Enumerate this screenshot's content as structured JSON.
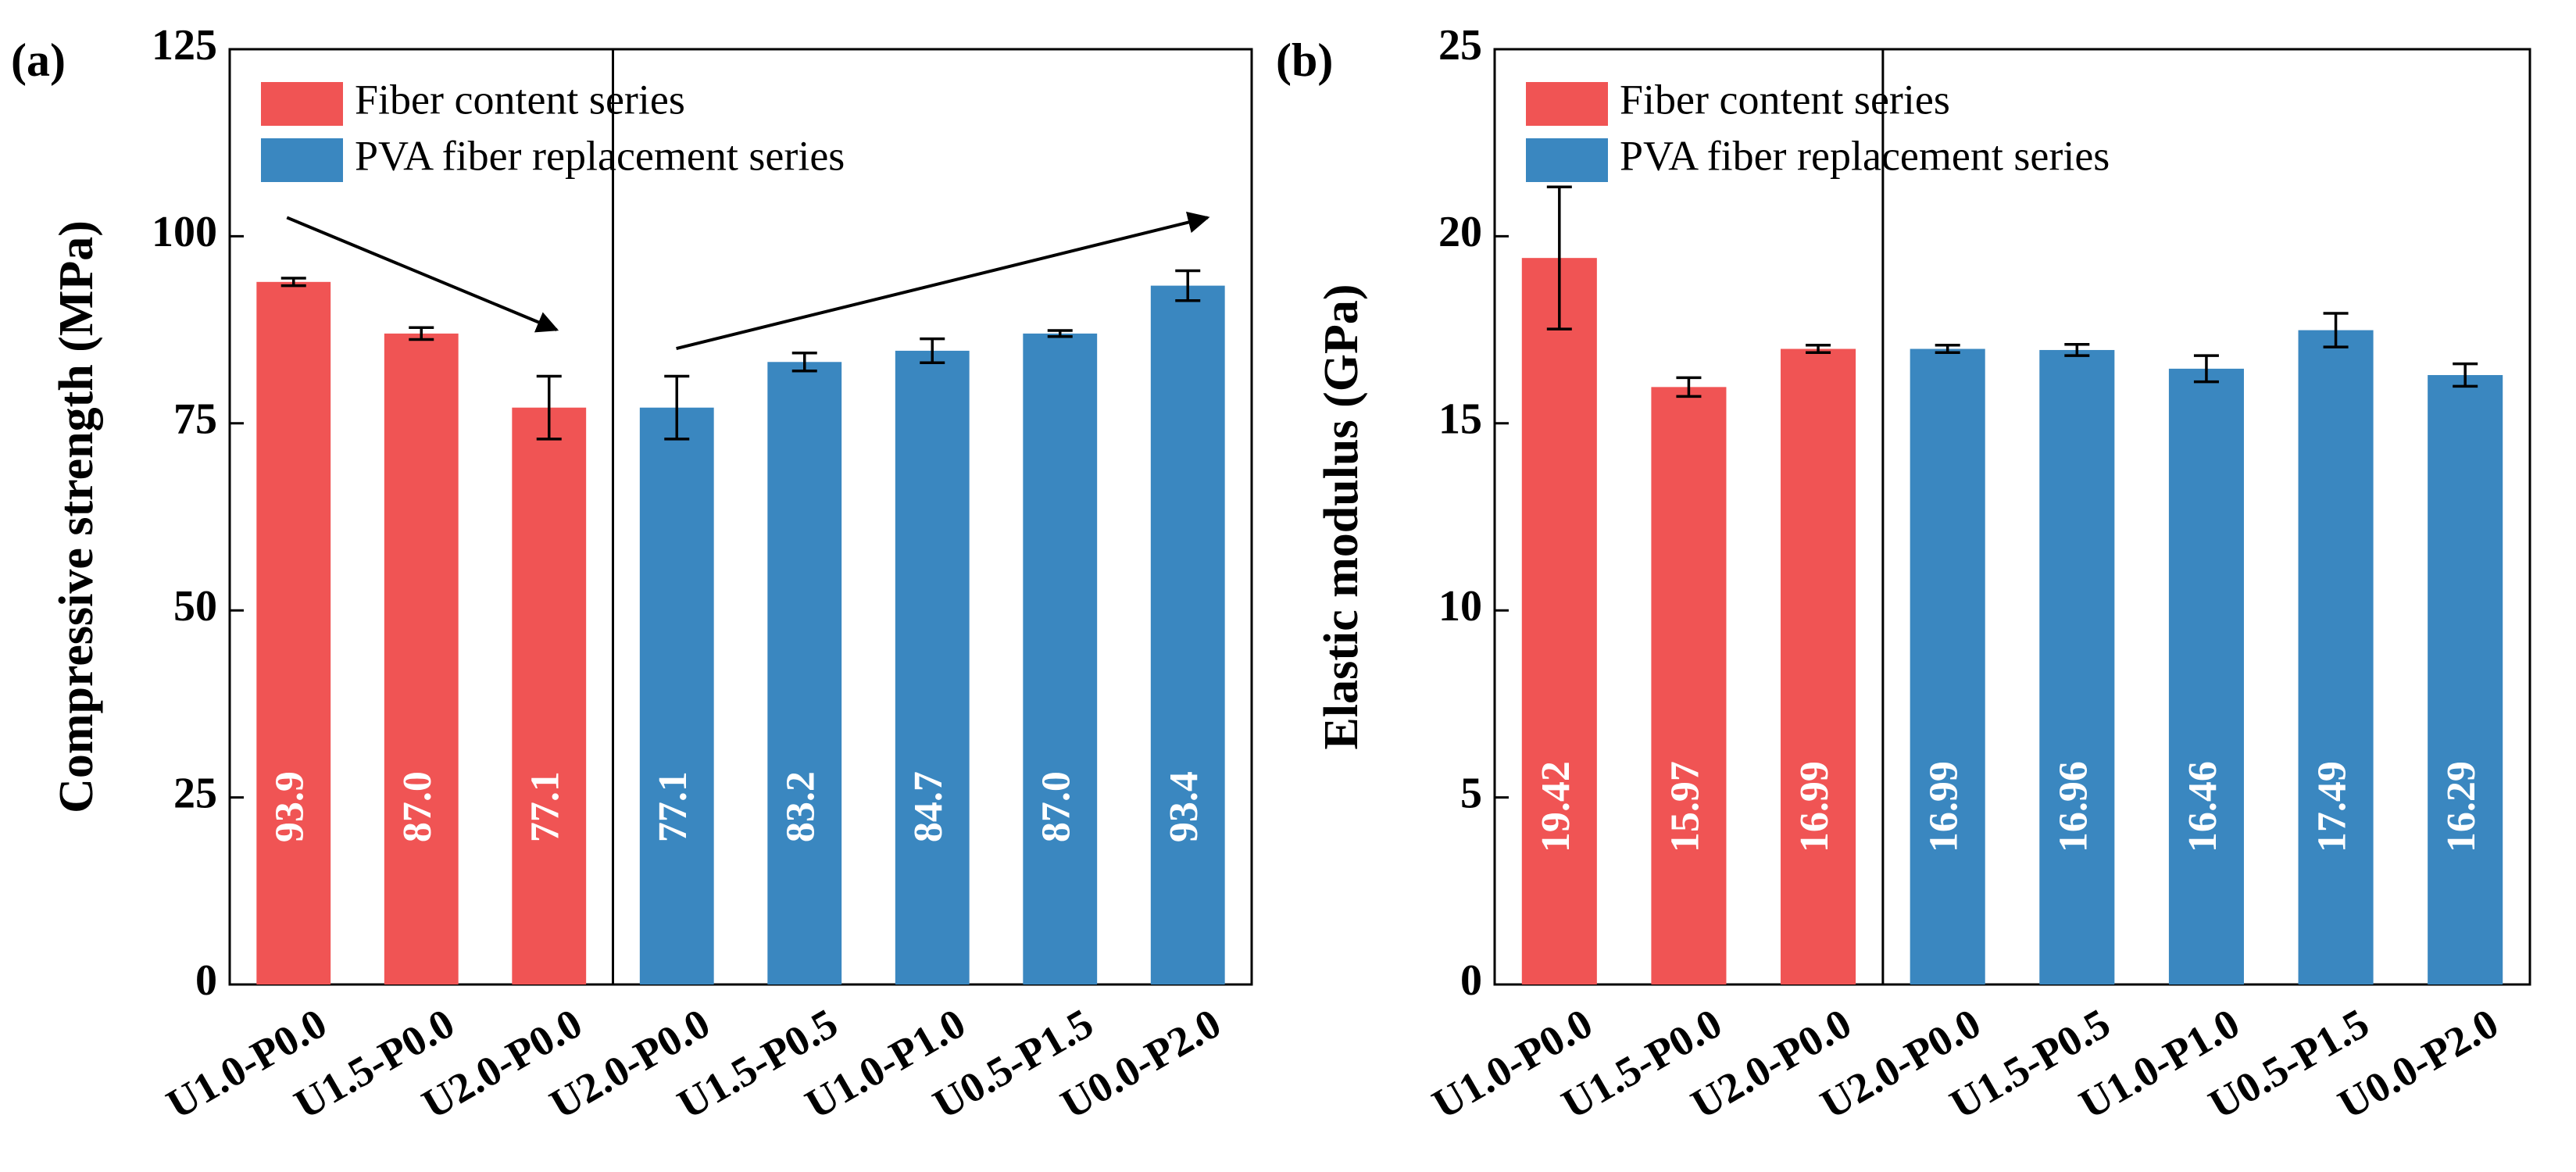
{
  "chart_data": [
    {
      "type": "bar",
      "panel": "(a)",
      "y_label": "Compressive strength (MPa)",
      "categories": [
        "U1.0-P0.0",
        "U1.5-P0.0",
        "U2.0-P0.0",
        "U2.0-P0.0",
        "U1.5-P0.5",
        "U1.0-P1.0",
        "U0.5-P1.5",
        "U0.0-P2.0"
      ],
      "series": [
        {
          "name": "Fiber content series",
          "color": "#f05454",
          "values": [
            93.9,
            87.0,
            77.1,
            null,
            null,
            null,
            null,
            null
          ],
          "value_labels": [
            "93.9",
            "87.0",
            "77.1",
            null,
            null,
            null,
            null,
            null
          ],
          "errors": [
            0.5,
            0.8,
            4.2,
            null,
            null,
            null,
            null,
            null
          ]
        },
        {
          "name": "PVA fiber replacement series",
          "color": "#3a87c0",
          "values": [
            null,
            null,
            null,
            77.1,
            83.2,
            84.7,
            87.0,
            93.4
          ],
          "value_labels": [
            null,
            null,
            null,
            "77.1",
            "83.2",
            "84.7",
            "87.0",
            "93.4"
          ],
          "errors": [
            null,
            null,
            null,
            4.2,
            1.2,
            1.6,
            0.4,
            2.0
          ]
        }
      ],
      "ylim": [
        0,
        125
      ],
      "yticks": [
        0,
        25,
        50,
        75,
        100,
        125
      ],
      "legend": "upper left"
    },
    {
      "type": "bar",
      "panel": "(b)",
      "y_label": "Elastic modulus (GPa)",
      "categories": [
        "U1.0-P0.0",
        "U1.5-P0.0",
        "U2.0-P0.0",
        "U2.0-P0.0",
        "U1.5-P0.5",
        "U1.0-P1.0",
        "U0.5-P1.5",
        "U0.0-P2.0"
      ],
      "series": [
        {
          "name": "Fiber content series",
          "color": "#f05454",
          "values": [
            19.42,
            15.97,
            16.99,
            null,
            null,
            null,
            null,
            null
          ],
          "errors": [
            1.9,
            0.25,
            0.1,
            null,
            null,
            null,
            null,
            null
          ]
        },
        {
          "name": "PVA fiber replacement series",
          "color": "#3a87c0",
          "values": [
            null,
            null,
            null,
            16.99,
            16.96,
            16.46,
            17.49,
            16.29
          ],
          "errors": [
            null,
            null,
            null,
            0.1,
            0.15,
            0.35,
            0.45,
            0.3
          ]
        }
      ],
      "ylim": [
        0,
        25
      ],
      "yticks": [
        0,
        5,
        10,
        15,
        20,
        25
      ],
      "legend": "upper left"
    }
  ]
}
